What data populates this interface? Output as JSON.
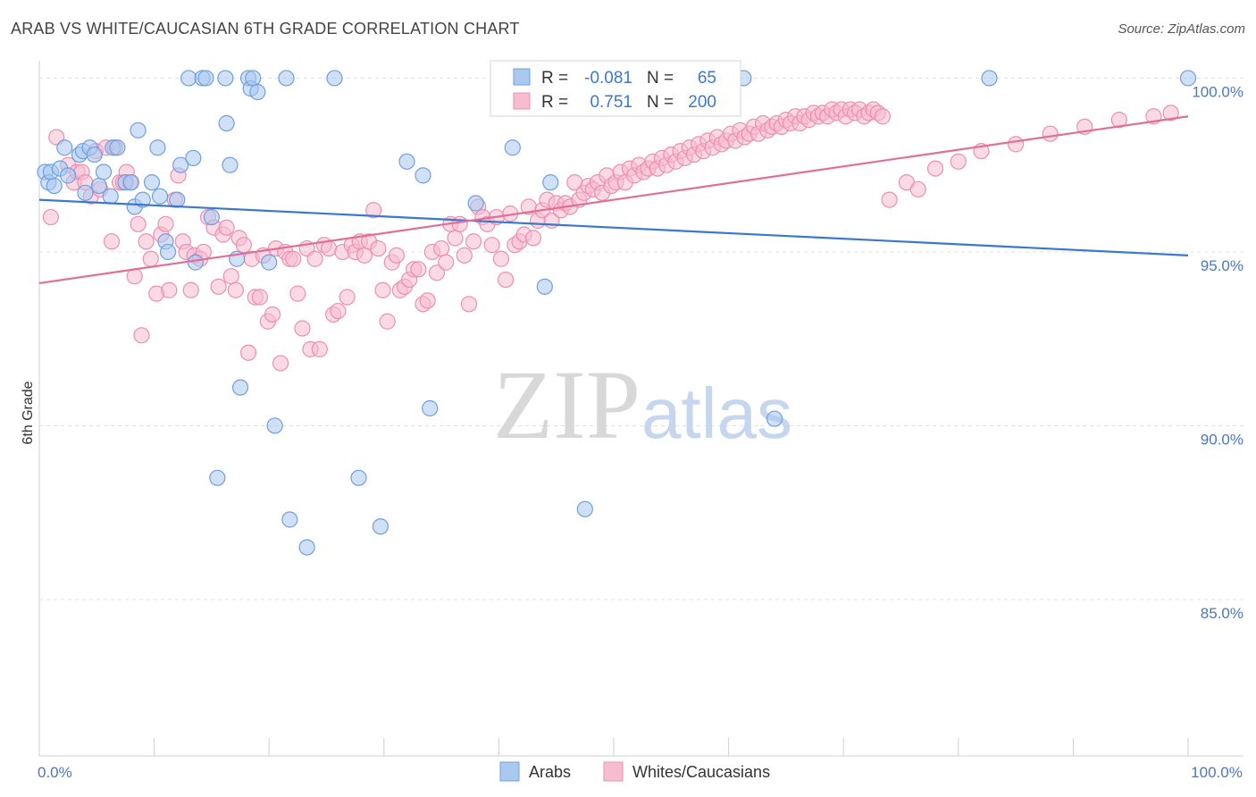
{
  "header": {
    "title": "ARAB VS WHITE/CAUCASIAN 6TH GRADE CORRELATION CHART",
    "source": "Source: ZipAtlas.com"
  },
  "watermark": {
    "zip": "ZIP",
    "atlas": "atlas"
  },
  "legend": {
    "rows": [
      {
        "r_label": "R =",
        "r_value": "-0.081",
        "n_label": "N =",
        "n_value": "65"
      },
      {
        "r_label": "R =",
        "r_value": "0.751",
        "n_label": "N =",
        "n_value": "200"
      }
    ]
  },
  "bottom_legend": [
    "Arabs",
    "Whites/Caucasians"
  ],
  "chart_data": {
    "type": "scatter",
    "ylabel": "6th Grade",
    "xlim": [
      0,
      100
    ],
    "ylim": [
      80.5,
      100.5
    ],
    "x_tick_labels": [
      {
        "value": 0,
        "label": "0.0%"
      },
      {
        "value": 100,
        "label": "100.0%"
      }
    ],
    "y_ticks": [
      {
        "value": 100,
        "label": "100.0%"
      },
      {
        "value": 95,
        "label": "95.0%"
      },
      {
        "value": 90,
        "label": "90.0%"
      },
      {
        "value": 85,
        "label": "85.0%"
      }
    ],
    "grid": "horizontal dashed",
    "legend_position": "top-center",
    "colors": {
      "arab_fill": "#aac8f0",
      "arab_stroke": "#6f9fe0",
      "arab_line": "#3a78d0",
      "white_fill": "#f7bcd0",
      "white_stroke": "#ec8fb0",
      "white_line": "#e06f98",
      "axis_label": "#4a78c4"
    },
    "series": [
      {
        "name": "Arabs",
        "trend": {
          "x0": 0,
          "y0": 96.5,
          "x1": 100,
          "y1": 94.9
        },
        "points": [
          [
            0.5,
            97.3
          ],
          [
            0.8,
            97.0
          ],
          [
            1.0,
            97.3
          ],
          [
            1.3,
            96.9
          ],
          [
            1.8,
            97.4
          ],
          [
            2.2,
            98.0
          ],
          [
            2.5,
            97.2
          ],
          [
            3.5,
            97.8
          ],
          [
            3.8,
            97.9
          ],
          [
            4.0,
            96.7
          ],
          [
            4.4,
            98.0
          ],
          [
            4.8,
            97.8
          ],
          [
            5.2,
            96.9
          ],
          [
            5.6,
            97.3
          ],
          [
            6.2,
            96.6
          ],
          [
            6.4,
            98.0
          ],
          [
            6.8,
            98.0
          ],
          [
            7.5,
            97.0
          ],
          [
            8.0,
            97.0
          ],
          [
            8.3,
            96.3
          ],
          [
            8.6,
            98.5
          ],
          [
            9.0,
            96.5
          ],
          [
            9.8,
            97.0
          ],
          [
            10.3,
            98.0
          ],
          [
            10.5,
            96.6
          ],
          [
            11.0,
            95.3
          ],
          [
            11.2,
            95.0
          ],
          [
            12.0,
            96.5
          ],
          [
            12.3,
            97.5
          ],
          [
            13.0,
            100.0
          ],
          [
            13.4,
            97.7
          ],
          [
            13.6,
            94.7
          ],
          [
            14.2,
            100.0
          ],
          [
            14.5,
            100.0
          ],
          [
            15.0,
            96.0
          ],
          [
            15.5,
            88.5
          ],
          [
            16.2,
            100.0
          ],
          [
            16.3,
            98.7
          ],
          [
            16.6,
            97.5
          ],
          [
            17.2,
            94.8
          ],
          [
            17.5,
            91.1
          ],
          [
            18.2,
            100.0
          ],
          [
            18.4,
            99.7
          ],
          [
            18.6,
            100.0
          ],
          [
            19.0,
            99.6
          ],
          [
            20.0,
            94.7
          ],
          [
            20.5,
            90.0
          ],
          [
            21.5,
            100.0
          ],
          [
            21.8,
            87.3
          ],
          [
            23.3,
            86.5
          ],
          [
            25.7,
            100.0
          ],
          [
            27.8,
            88.5
          ],
          [
            29.7,
            87.1
          ],
          [
            32.0,
            97.6
          ],
          [
            33.4,
            97.2
          ],
          [
            34.0,
            90.5
          ],
          [
            38.0,
            96.4
          ],
          [
            41.2,
            98.0
          ],
          [
            44.0,
            94.0
          ],
          [
            44.5,
            97.0
          ],
          [
            47.5,
            87.6
          ],
          [
            61.3,
            100.0
          ],
          [
            64.0,
            90.2
          ],
          [
            82.7,
            100.0
          ],
          [
            100.0,
            100.0
          ]
        ]
      },
      {
        "name": "Whites/Caucasians",
        "trend": {
          "x0": 0,
          "y0": 94.1,
          "x1": 100,
          "y1": 98.9
        },
        "points": [
          [
            1.0,
            96.0
          ],
          [
            1.5,
            98.3
          ],
          [
            2.5,
            97.5
          ],
          [
            3.0,
            97.0
          ],
          [
            3.3,
            97.3
          ],
          [
            3.7,
            97.3
          ],
          [
            4.0,
            97.0
          ],
          [
            4.5,
            96.6
          ],
          [
            4.9,
            97.9
          ],
          [
            5.3,
            96.8
          ],
          [
            5.8,
            98.0
          ],
          [
            6.3,
            95.3
          ],
          [
            6.6,
            98.0
          ],
          [
            7.0,
            97.0
          ],
          [
            7.3,
            97.0
          ],
          [
            7.6,
            97.3
          ],
          [
            7.9,
            97.0
          ],
          [
            8.3,
            94.3
          ],
          [
            8.6,
            95.8
          ],
          [
            8.9,
            92.6
          ],
          [
            9.3,
            95.3
          ],
          [
            9.7,
            94.8
          ],
          [
            10.2,
            93.8
          ],
          [
            10.6,
            95.5
          ],
          [
            11.0,
            95.8
          ],
          [
            11.3,
            93.9
          ],
          [
            11.8,
            96.5
          ],
          [
            12.1,
            97.2
          ],
          [
            12.5,
            95.3
          ],
          [
            12.8,
            95.0
          ],
          [
            13.2,
            93.9
          ],
          [
            13.5,
            94.9
          ],
          [
            14.0,
            94.8
          ],
          [
            14.3,
            95.0
          ],
          [
            14.7,
            96.0
          ],
          [
            15.2,
            95.7
          ],
          [
            15.6,
            94.0
          ],
          [
            16.0,
            95.5
          ],
          [
            16.3,
            95.7
          ],
          [
            16.7,
            94.3
          ],
          [
            17.1,
            93.9
          ],
          [
            17.4,
            95.4
          ],
          [
            17.8,
            95.2
          ],
          [
            18.2,
            92.1
          ],
          [
            18.5,
            94.8
          ],
          [
            18.8,
            93.7
          ],
          [
            19.2,
            93.7
          ],
          [
            19.5,
            94.9
          ],
          [
            19.9,
            93.0
          ],
          [
            20.3,
            93.2
          ],
          [
            20.6,
            95.1
          ],
          [
            21.0,
            91.8
          ],
          [
            21.4,
            95.0
          ],
          [
            21.8,
            94.8
          ],
          [
            22.1,
            94.8
          ],
          [
            22.5,
            93.8
          ],
          [
            22.9,
            92.8
          ],
          [
            23.3,
            95.1
          ],
          [
            23.6,
            92.2
          ],
          [
            24.0,
            94.8
          ],
          [
            24.4,
            92.2
          ],
          [
            24.8,
            95.2
          ],
          [
            25.2,
            95.1
          ],
          [
            25.6,
            93.2
          ],
          [
            26.0,
            93.3
          ],
          [
            26.4,
            95.0
          ],
          [
            26.8,
            93.7
          ],
          [
            27.2,
            95.2
          ],
          [
            27.5,
            95.0
          ],
          [
            27.9,
            95.3
          ],
          [
            28.3,
            94.9
          ],
          [
            28.7,
            95.3
          ],
          [
            29.1,
            96.2
          ],
          [
            29.5,
            95.1
          ],
          [
            29.9,
            93.9
          ],
          [
            30.3,
            93.0
          ],
          [
            30.7,
            94.7
          ],
          [
            31.1,
            94.9
          ],
          [
            31.4,
            93.9
          ],
          [
            31.8,
            94.0
          ],
          [
            32.2,
            94.2
          ],
          [
            32.6,
            94.5
          ],
          [
            33.0,
            94.5
          ],
          [
            33.4,
            93.5
          ],
          [
            33.8,
            93.6
          ],
          [
            34.2,
            95.0
          ],
          [
            34.6,
            94.4
          ],
          [
            35.0,
            95.1
          ],
          [
            35.4,
            94.7
          ],
          [
            35.8,
            95.8
          ],
          [
            36.2,
            95.4
          ],
          [
            36.6,
            95.8
          ],
          [
            37.0,
            94.9
          ],
          [
            37.4,
            93.5
          ],
          [
            37.8,
            95.3
          ],
          [
            38.2,
            96.3
          ],
          [
            38.6,
            96.0
          ],
          [
            39.0,
            95.8
          ],
          [
            39.4,
            95.2
          ],
          [
            39.8,
            96.0
          ],
          [
            40.2,
            94.8
          ],
          [
            40.6,
            94.2
          ],
          [
            41.0,
            96.1
          ],
          [
            41.4,
            95.2
          ],
          [
            41.8,
            95.3
          ],
          [
            42.2,
            95.5
          ],
          [
            42.6,
            96.3
          ],
          [
            43.0,
            95.4
          ],
          [
            43.4,
            95.9
          ],
          [
            43.8,
            96.2
          ],
          [
            44.2,
            96.5
          ],
          [
            44.6,
            95.9
          ],
          [
            45.0,
            96.4
          ],
          [
            45.4,
            96.2
          ],
          [
            45.8,
            96.4
          ],
          [
            46.2,
            96.3
          ],
          [
            46.6,
            97.0
          ],
          [
            47.0,
            96.5
          ],
          [
            47.4,
            96.7
          ],
          [
            47.8,
            96.9
          ],
          [
            48.2,
            96.8
          ],
          [
            48.6,
            97.0
          ],
          [
            49.0,
            96.7
          ],
          [
            49.4,
            97.2
          ],
          [
            49.8,
            96.9
          ],
          [
            50.2,
            97.0
          ],
          [
            50.6,
            97.3
          ],
          [
            51.0,
            97.0
          ],
          [
            51.4,
            97.4
          ],
          [
            51.8,
            97.2
          ],
          [
            52.2,
            97.5
          ],
          [
            52.6,
            97.3
          ],
          [
            53.0,
            97.4
          ],
          [
            53.4,
            97.6
          ],
          [
            53.8,
            97.4
          ],
          [
            54.2,
            97.7
          ],
          [
            54.6,
            97.5
          ],
          [
            55.0,
            97.8
          ],
          [
            55.4,
            97.6
          ],
          [
            55.8,
            97.9
          ],
          [
            56.2,
            97.7
          ],
          [
            56.6,
            98.0
          ],
          [
            57.0,
            97.8
          ],
          [
            57.4,
            98.1
          ],
          [
            57.8,
            97.9
          ],
          [
            58.2,
            98.2
          ],
          [
            58.6,
            98.0
          ],
          [
            59.0,
            98.3
          ],
          [
            59.4,
            98.1
          ],
          [
            59.8,
            98.2
          ],
          [
            60.2,
            98.4
          ],
          [
            60.6,
            98.2
          ],
          [
            61.0,
            98.5
          ],
          [
            61.4,
            98.3
          ],
          [
            61.8,
            98.4
          ],
          [
            62.2,
            98.6
          ],
          [
            62.6,
            98.4
          ],
          [
            63.0,
            98.7
          ],
          [
            63.4,
            98.5
          ],
          [
            63.8,
            98.6
          ],
          [
            64.2,
            98.7
          ],
          [
            64.6,
            98.6
          ],
          [
            65.0,
            98.8
          ],
          [
            65.4,
            98.7
          ],
          [
            65.8,
            98.9
          ],
          [
            66.2,
            98.7
          ],
          [
            66.6,
            98.9
          ],
          [
            67.0,
            98.8
          ],
          [
            67.4,
            99.0
          ],
          [
            67.8,
            98.9
          ],
          [
            68.2,
            99.0
          ],
          [
            68.6,
            98.9
          ],
          [
            69.0,
            99.1
          ],
          [
            69.4,
            99.0
          ],
          [
            69.8,
            99.1
          ],
          [
            70.2,
            98.9
          ],
          [
            70.6,
            99.1
          ],
          [
            71.0,
            99.0
          ],
          [
            71.4,
            99.1
          ],
          [
            71.8,
            98.9
          ],
          [
            72.2,
            99.0
          ],
          [
            72.6,
            99.1
          ],
          [
            73.0,
            99.0
          ],
          [
            73.4,
            98.9
          ],
          [
            74.0,
            96.5
          ],
          [
            75.5,
            97.0
          ],
          [
            76.5,
            96.8
          ],
          [
            78.0,
            97.4
          ],
          [
            80.0,
            97.6
          ],
          [
            82.0,
            97.9
          ],
          [
            85.0,
            98.1
          ],
          [
            88.0,
            98.4
          ],
          [
            91.0,
            98.6
          ],
          [
            94.0,
            98.8
          ],
          [
            97.0,
            98.9
          ],
          [
            98.5,
            99.0
          ]
        ]
      }
    ]
  }
}
